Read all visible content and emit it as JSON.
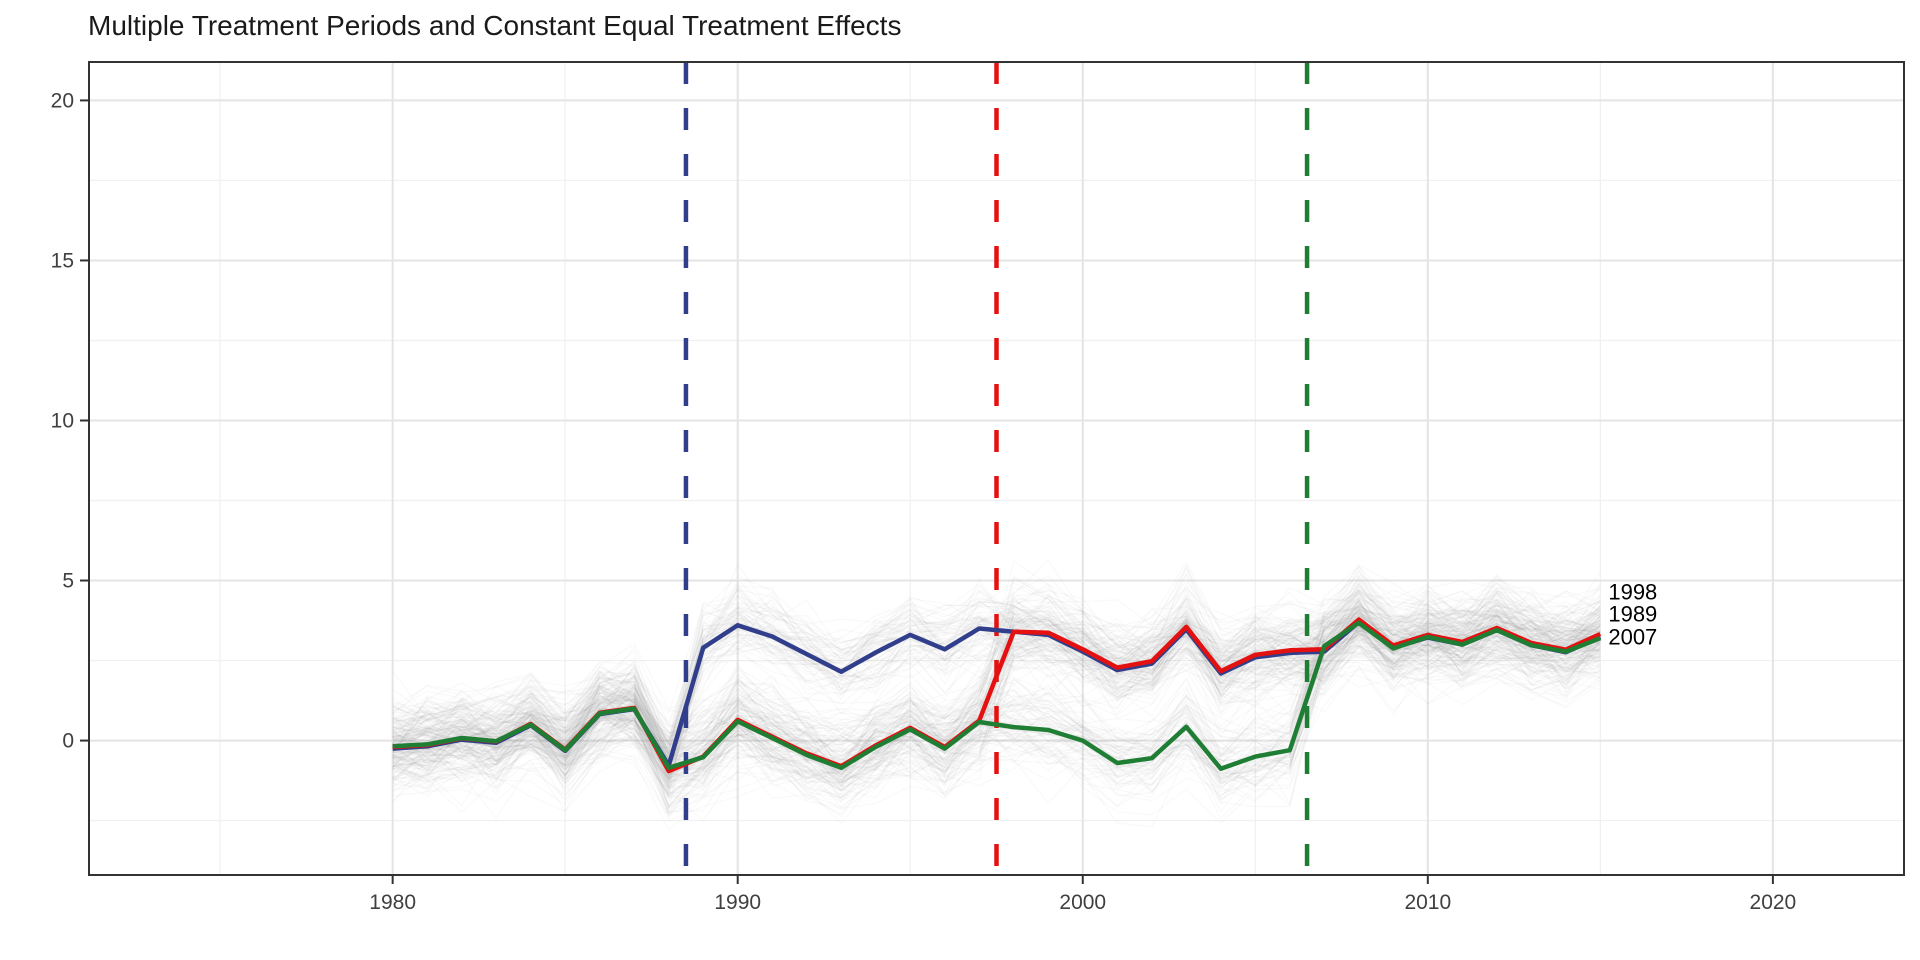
{
  "chart_data": {
    "type": "line",
    "title": "Multiple Treatment Periods and Constant Equal Treatment Effects",
    "xlabel": "",
    "ylabel": "",
    "grid": "on",
    "legend": "none",
    "x_ticks": [
      1980,
      1990,
      2000,
      2010,
      2020
    ],
    "y_ticks": [
      0,
      5,
      10,
      15,
      20
    ],
    "x_minor_ticks": [
      1975,
      1985,
      1995,
      2005,
      2015
    ],
    "y_minor_ticks": [
      -2.5,
      2.5,
      7.5,
      12.5,
      17.5
    ],
    "x_domain": [
      1971.2,
      2023.8
    ],
    "y_domain": [
      -4.2,
      21.2
    ],
    "x": [
      1980,
      1981,
      1982,
      1983,
      1984,
      1985,
      1986,
      1987,
      1988,
      1989,
      1990,
      1991,
      1992,
      1993,
      1994,
      1995,
      1996,
      1997,
      1998,
      1999,
      2000,
      2001,
      2002,
      2003,
      2004,
      2005,
      2006,
      2007,
      2008,
      2009,
      2010,
      2011,
      2012,
      2013,
      2014,
      2015
    ],
    "series": [
      {
        "name": "1989",
        "color": "#313E8B",
        "treatment_year": 1989,
        "dashed_line_x": 1988.5,
        "values": [
          -0.25,
          -0.18,
          0.03,
          -0.07,
          0.48,
          -0.32,
          0.83,
          0.98,
          -0.78,
          2.9,
          3.6,
          3.25,
          2.7,
          2.15,
          2.75,
          3.3,
          2.85,
          3.5,
          3.4,
          3.3,
          2.78,
          2.2,
          2.4,
          3.48,
          2.1,
          2.6,
          2.74,
          2.78,
          3.7,
          2.9,
          3.22,
          3.0,
          3.45,
          2.98,
          2.76,
          3.24
        ]
      },
      {
        "name": "1998",
        "color": "#E41111",
        "treatment_year": 1998,
        "dashed_line_x": 1997.5,
        "values": [
          -0.2,
          -0.14,
          0.07,
          -0.03,
          0.52,
          -0.28,
          0.87,
          1.02,
          -0.95,
          -0.5,
          0.65,
          0.12,
          -0.4,
          -0.8,
          -0.15,
          0.4,
          -0.2,
          0.62,
          3.4,
          3.37,
          2.85,
          2.28,
          2.48,
          3.55,
          2.17,
          2.68,
          2.82,
          2.85,
          3.78,
          2.97,
          3.3,
          3.08,
          3.52,
          3.05,
          2.84,
          3.33
        ]
      },
      {
        "name": "2007",
        "color": "#1F7E34",
        "treatment_year": 2007,
        "dashed_line_x": 2006.5,
        "values": [
          -0.18,
          -0.12,
          0.08,
          -0.02,
          0.5,
          -0.3,
          0.85,
          1.0,
          -0.85,
          -0.52,
          0.6,
          0.08,
          -0.45,
          -0.85,
          -0.2,
          0.35,
          -0.25,
          0.58,
          0.42,
          0.33,
          0.0,
          -0.7,
          -0.55,
          0.43,
          -0.88,
          -0.5,
          -0.3,
          2.95,
          3.68,
          2.88,
          3.24,
          3.0,
          3.45,
          2.98,
          2.78,
          3.2
        ]
      }
    ],
    "end_labels": [
      {
        "label": "1998",
        "value": 4.66
      },
      {
        "label": "1989",
        "value": 3.97
      },
      {
        "label": "2007",
        "value": 3.25
      }
    ],
    "background_spaghetti": {
      "description": "faint individual-unit trajectories around each group mean",
      "units_per_group": 80,
      "unit_offset_sd": 0.55,
      "year_noise_sd": 0.45,
      "color": "#8a8a8a",
      "opacity": 0.055,
      "seed": 20240601
    }
  },
  "style_colors": {
    "panel_border": "#333333",
    "axis_tick": "#333333",
    "axis_text": "#404040",
    "major_grid": "#e4e4e4",
    "minor_grid": "#f0f0f0",
    "title_text": "#1a1a1a",
    "end_label_text": "#000000"
  }
}
